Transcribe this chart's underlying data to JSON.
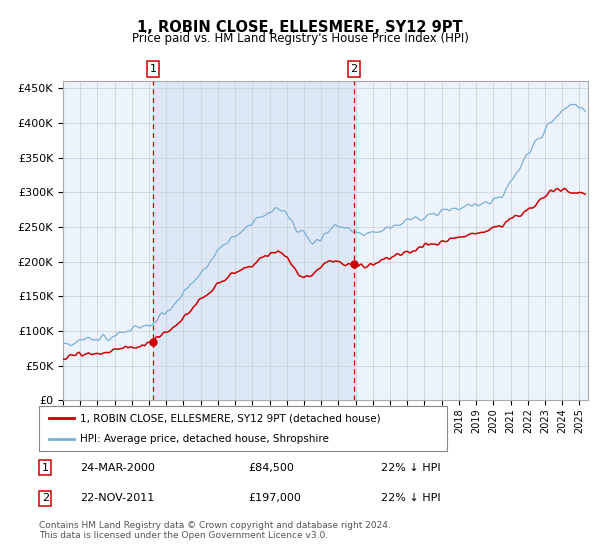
{
  "title": "1, ROBIN CLOSE, ELLESMERE, SY12 9PT",
  "subtitle": "Price paid vs. HM Land Registry's House Price Index (HPI)",
  "legend_property": "1, ROBIN CLOSE, ELLESMERE, SY12 9PT (detached house)",
  "legend_hpi": "HPI: Average price, detached house, Shropshire",
  "annotation1_date": "24-MAR-2000",
  "annotation1_price": "£84,500",
  "annotation1_hpi": "22% ↓ HPI",
  "annotation1_year": 2000.23,
  "annotation1_value": 84500,
  "annotation2_date": "22-NOV-2011",
  "annotation2_price": "£197,000",
  "annotation2_hpi": "22% ↓ HPI",
  "annotation2_year": 2011.9,
  "annotation2_value": 197000,
  "property_color": "#cc0000",
  "hpi_color": "#7bafd4",
  "hpi_fill_color": "#dce8f5",
  "dashed_line_color": "#cc0000",
  "plot_bg_color": "#edf3fb",
  "grid_color": "#c8cfd8",
  "footer_text": "Contains HM Land Registry data © Crown copyright and database right 2024.\nThis data is licensed under the Open Government Licence v3.0.",
  "ylim": [
    0,
    460000
  ],
  "xlim_start": 1995.0,
  "xlim_end": 2025.5
}
